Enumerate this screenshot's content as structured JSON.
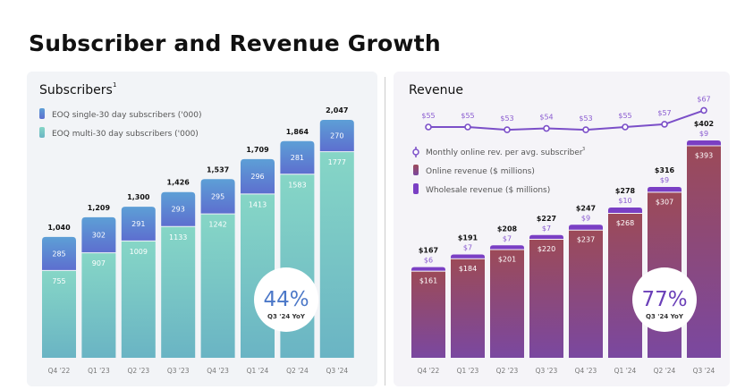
{
  "title": "Subscriber and Revenue Growth",
  "chart_data": [
    {
      "type": "bar",
      "stacked": true,
      "title": "Subscribers",
      "title_superscript": "1",
      "categories": [
        "Q4 '22",
        "Q1 '23",
        "Q2 '23",
        "Q3 '23",
        "Q4 '23",
        "Q1 '24",
        "Q2 '24",
        "Q3 '24"
      ],
      "series": [
        {
          "name": "EOQ multi-30 day subscribers  ('000)",
          "color": "#7fd0c2",
          "values": [
            755,
            907,
            1009,
            1133,
            1242,
            1413,
            1583,
            1777
          ]
        },
        {
          "name": "EOQ single-30 day subscribers ('000)",
          "color": "#5b7fd2",
          "values": [
            285,
            302,
            291,
            293,
            295,
            296,
            281,
            270
          ]
        }
      ],
      "totals": [
        "1,040",
        "1,209",
        "1,300",
        "1,426",
        "1,537",
        "1,709",
        "1,864",
        "2,047"
      ],
      "callout": {
        "value": "44%",
        "label": "Q3 '24 YoY"
      },
      "legend": "top-left"
    },
    {
      "type": "bar",
      "stacked": true,
      "title": "Revenue",
      "categories": [
        "Q4 '22",
        "Q1 '23",
        "Q2 '23",
        "Q3 '23",
        "Q4 '23",
        "Q1 '24",
        "Q2 '24",
        "Q3 '24"
      ],
      "series": [
        {
          "name": "Online revenue ($ millions)",
          "color": "#94465e",
          "values": [
            161,
            184,
            201,
            220,
            237,
            268,
            307,
            393
          ]
        },
        {
          "name": "Wholesale revenue ($ millions)",
          "color": "#7a3fc4",
          "values": [
            6,
            7,
            7,
            7,
            9,
            10,
            9,
            9
          ]
        }
      ],
      "totals": [
        "$167",
        "$191",
        "$208",
        "$227",
        "$247",
        "$278",
        "$316",
        "$402"
      ],
      "line": {
        "name": "Monthly online rev. per avg. subscriber",
        "superscript": "3",
        "color": "#7b4fc8",
        "values": [
          55,
          55,
          53,
          54,
          53,
          55,
          57,
          67
        ]
      },
      "callout": {
        "value": "77%",
        "label": "Q3 '24 YoY"
      },
      "legend": "left"
    }
  ]
}
